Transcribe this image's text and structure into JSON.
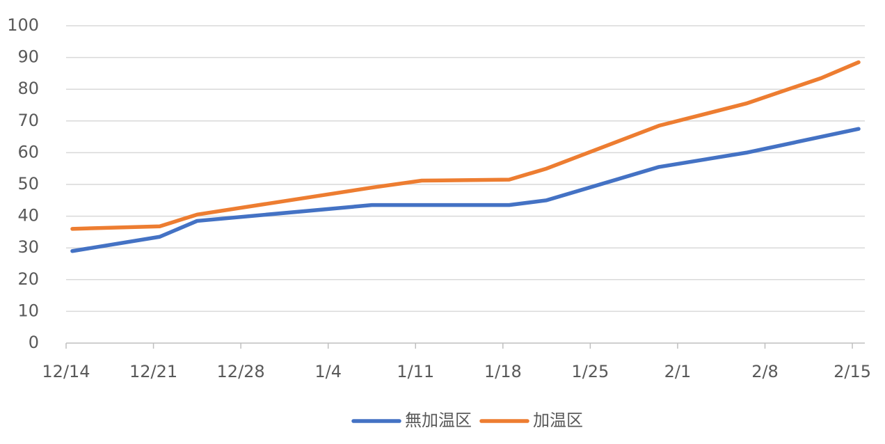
{
  "chart_data": {
    "type": "line",
    "x": [
      "12/14",
      "12/21",
      "12/24",
      "1/7",
      "1/11",
      "1/18",
      "1/21",
      "1/30",
      "2/6",
      "2/12",
      "2/15"
    ],
    "series": [
      {
        "name": "無加温区",
        "color": "#4472c4",
        "values": [
          29,
          33.5,
          38.5,
          43.5,
          43.5,
          43.5,
          45,
          55.5,
          60,
          65,
          67.5
        ]
      },
      {
        "name": "加温区",
        "color": "#ed7d31",
        "values": [
          36,
          36.8,
          40.5,
          49,
          51.2,
          51.5,
          55,
          68.5,
          75.5,
          83.5,
          88.5
        ]
      }
    ],
    "xlim": [
      "12/14",
      "2/15"
    ],
    "xticks": [
      "12/14",
      "12/21",
      "12/28",
      "1/4",
      "1/11",
      "1/18",
      "1/25",
      "2/1",
      "2/8",
      "2/15"
    ],
    "ylim": [
      0,
      100
    ],
    "yticks": [
      0,
      10,
      20,
      30,
      40,
      50,
      60,
      70,
      80,
      90,
      100
    ],
    "grid": true,
    "legend": "bottom"
  }
}
